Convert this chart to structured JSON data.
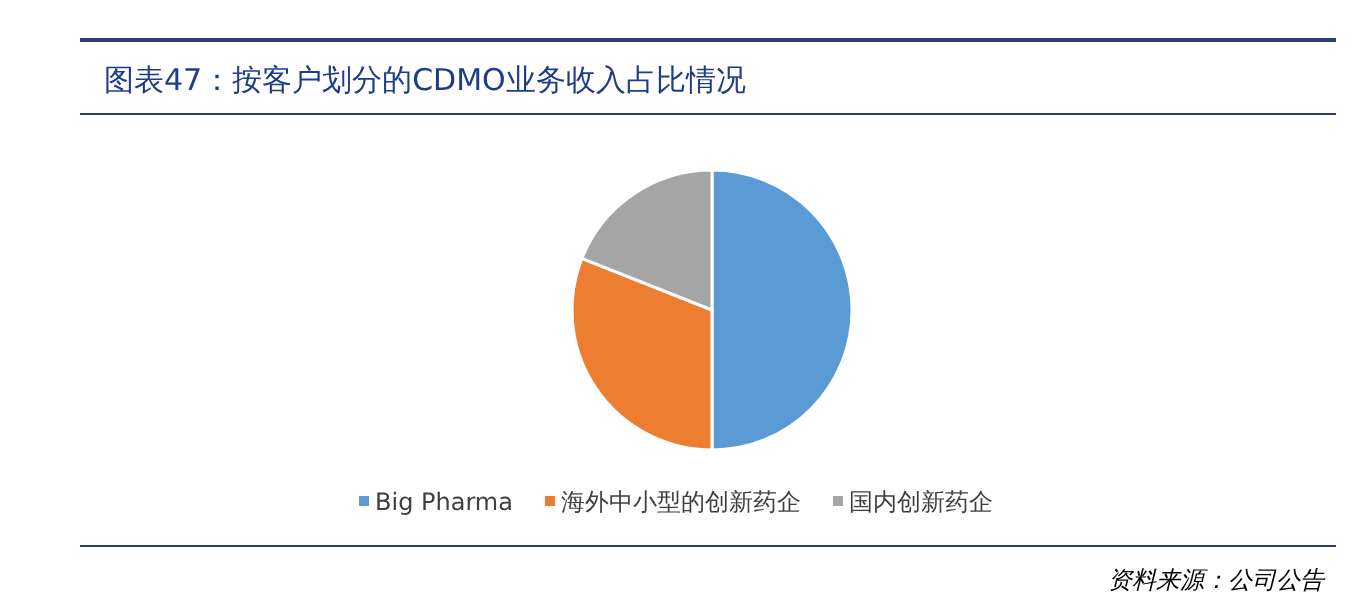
{
  "chart_data": {
    "type": "pie",
    "title": "图表47：按客户划分的CDMO业务收入占比情况",
    "categories": [
      "Big Pharma",
      "海外中小型的创新药企",
      "国内创新药企"
    ],
    "values": [
      50,
      31,
      19
    ],
    "colors": [
      "#5b9bd5",
      "#ed7d31",
      "#a5a5a5"
    ],
    "legend": "bottom",
    "annotations": [
      "资料来源：公司公告"
    ]
  }
}
